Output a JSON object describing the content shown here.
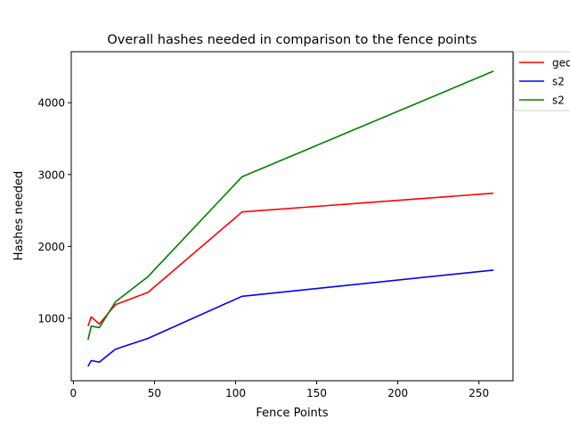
{
  "chart_data": {
    "type": "line",
    "title": "Overall hashes needed in comparison to the fence points",
    "xlabel": "Fence Points",
    "ylabel": "Hashes needed",
    "xlim": [
      -1.3,
      271
    ],
    "ylim": [
      130,
      4710
    ],
    "x_ticks": [
      0,
      50,
      100,
      150,
      200,
      250
    ],
    "y_ticks": [
      1000,
      2000,
      3000,
      4000
    ],
    "legend_position": "top-right-outside",
    "series": [
      {
        "name": "geo",
        "color": "#ff0000",
        "x": [
          9,
          11,
          16,
          26,
          46,
          104,
          259
        ],
        "y": [
          890,
          1020,
          920,
          1190,
          1360,
          2480,
          2740
        ]
      },
      {
        "name": "s2",
        "color": "#0000ff",
        "x": [
          9,
          11,
          16,
          26,
          46,
          104,
          259
        ],
        "y": [
          330,
          410,
          390,
          570,
          720,
          1305,
          1670
        ]
      },
      {
        "name": "s2",
        "color": "#008000",
        "x": [
          9,
          11,
          16,
          26,
          46,
          104,
          259
        ],
        "y": [
          700,
          890,
          870,
          1230,
          1580,
          2970,
          4440
        ]
      }
    ]
  }
}
